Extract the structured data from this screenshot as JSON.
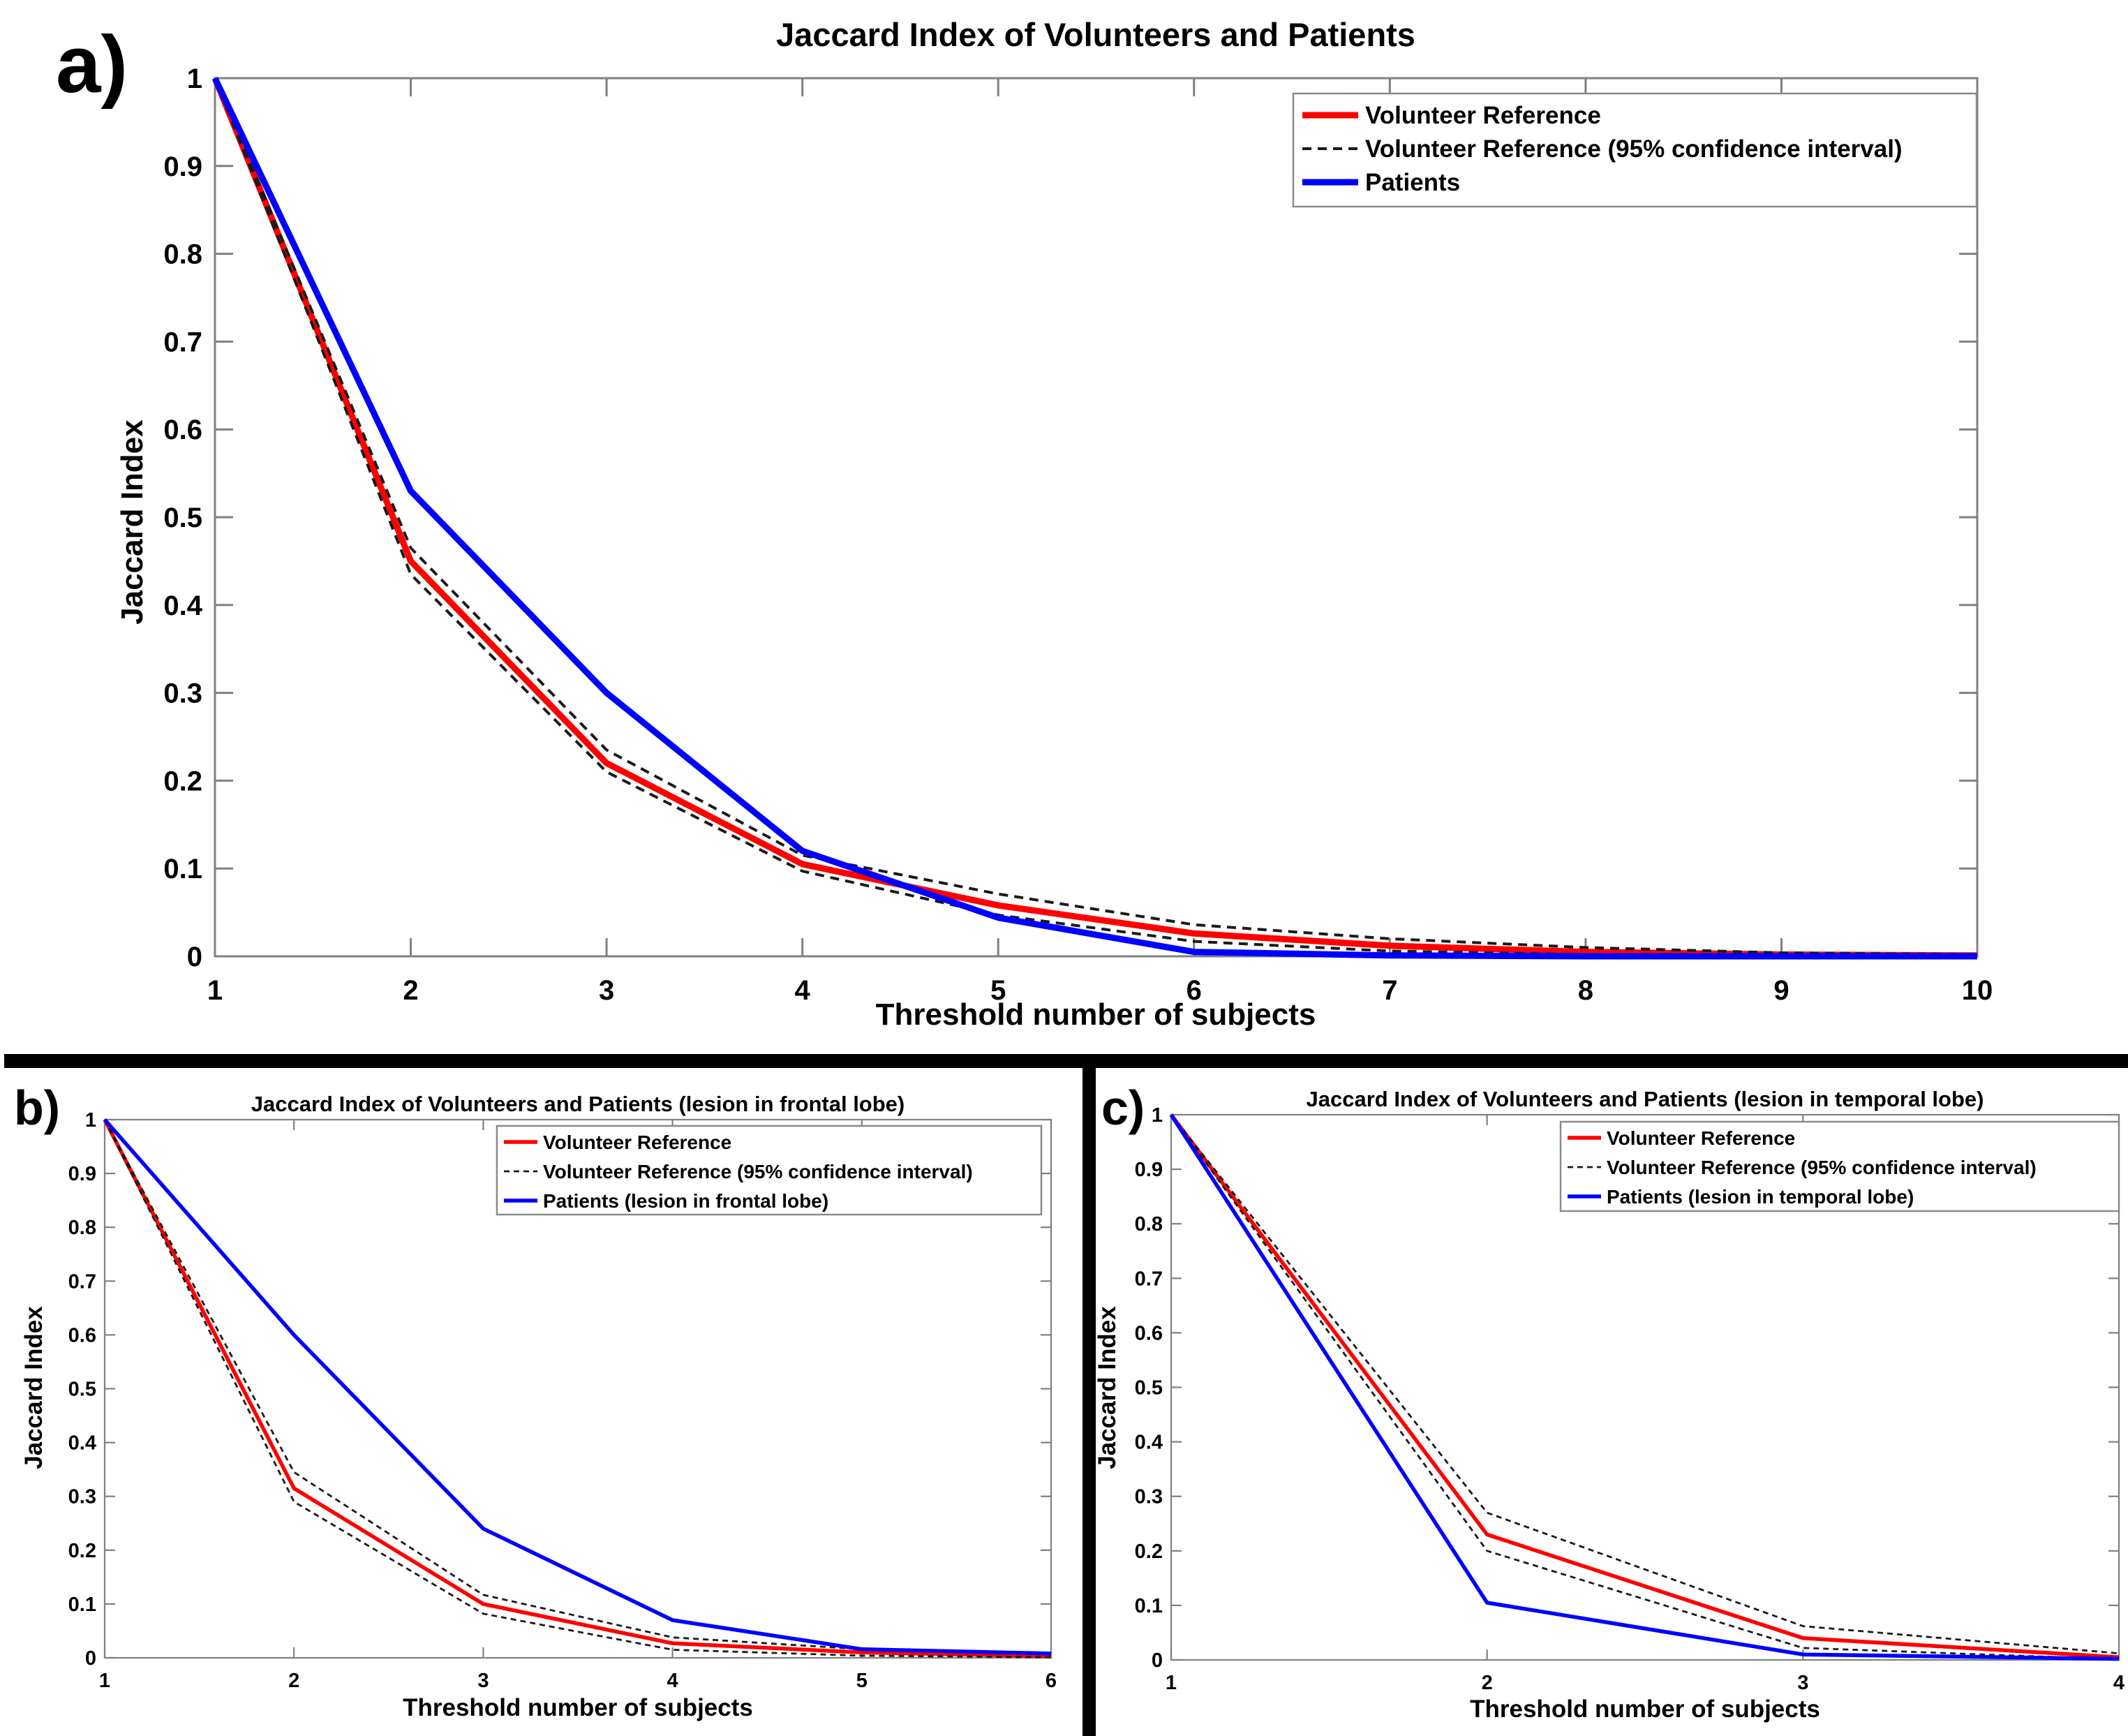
{
  "figure": {
    "panels": [
      {
        "key": "a",
        "label": "a)"
      },
      {
        "key": "b",
        "label": "b)"
      },
      {
        "key": "c",
        "label": "c)"
      }
    ]
  },
  "colors": {
    "volunteer_reference": "#ff0000",
    "confidence_interval": "#1a1a1a",
    "patients": "#0000ff",
    "axis": "#808080",
    "legend_border": "#8a8a8a",
    "divider": "#000000",
    "background": "#ffffff",
    "text": "#000000"
  },
  "chart_data": [
    {
      "panel_key": "a",
      "panel_label": "a)",
      "type": "line",
      "title": "Jaccard Index of Volunteers and Patients",
      "xlabel": "Threshold number of subjects",
      "ylabel": "Jaccard Index",
      "x": [
        1,
        2,
        3,
        4,
        5,
        6,
        7,
        8,
        9,
        10
      ],
      "xlim": [
        1,
        10
      ],
      "ylim": [
        0,
        1
      ],
      "xtick_labels": [
        "1",
        "2",
        "3",
        "4",
        "5",
        "6",
        "7",
        "8",
        "9",
        "10"
      ],
      "yticks": [
        0,
        0.1,
        0.2,
        0.3,
        0.4,
        0.5,
        0.6,
        0.7,
        0.8,
        0.9,
        1
      ],
      "ytick_labels": [
        "0",
        "0.1",
        "0.2",
        "0.3",
        "0.4",
        "0.5",
        "0.6",
        "0.7",
        "0.8",
        "0.9",
        "1"
      ],
      "grid": false,
      "legend_position": "upper-right",
      "series": [
        {
          "name": "Volunteer Reference",
          "color": "#ff0000",
          "style": "solid",
          "values": [
            1,
            0.45,
            0.22,
            0.105,
            0.058,
            0.026,
            0.012,
            0.005,
            0.002,
            0.001
          ]
        },
        {
          "name": "Volunteer Reference (95% confidence interval)",
          "color": "#1a1a1a",
          "style": "dashed",
          "values_upper": [
            1,
            0.465,
            0.235,
            0.115,
            0.071,
            0.036,
            0.02,
            0.01,
            0.004,
            0.002
          ],
          "values_lower": [
            1,
            0.435,
            0.21,
            0.097,
            0.047,
            0.017,
            0.006,
            0.002,
            0.001,
            0
          ]
        },
        {
          "name": "Patients",
          "color": "#0000ff",
          "style": "solid",
          "values": [
            1,
            0.53,
            0.3,
            0.12,
            0.044,
            0.005,
            0.001,
            0,
            0,
            0
          ]
        }
      ]
    },
    {
      "panel_key": "b",
      "panel_label": "b)",
      "type": "line",
      "title": "Jaccard Index of Volunteers and Patients (lesion in frontal lobe)",
      "xlabel": "Threshold number of subjects",
      "ylabel": "Jaccard Index",
      "x": [
        1,
        2,
        3,
        4,
        5,
        6
      ],
      "xlim": [
        1,
        6
      ],
      "ylim": [
        0,
        1
      ],
      "xtick_labels": [
        "1",
        "2",
        "3",
        "4",
        "5",
        "6"
      ],
      "yticks": [
        0,
        0.1,
        0.2,
        0.3,
        0.4,
        0.5,
        0.6,
        0.7,
        0.8,
        0.9,
        1
      ],
      "ytick_labels": [
        "0",
        "0.1",
        "0.2",
        "0.3",
        "0.4",
        "0.5",
        "0.6",
        "0.7",
        "0.8",
        "0.9",
        "1"
      ],
      "grid": false,
      "legend_position": "upper-right",
      "series": [
        {
          "name": "Volunteer Reference",
          "color": "#ff0000",
          "style": "solid",
          "values": [
            1,
            0.315,
            0.1,
            0.027,
            0.01,
            0.003
          ]
        },
        {
          "name": "Volunteer Reference (95% confidence interval)",
          "color": "#1a1a1a",
          "style": "dashed",
          "values_upper": [
            1,
            0.345,
            0.117,
            0.038,
            0.016,
            0.006
          ],
          "values_lower": [
            1,
            0.29,
            0.082,
            0.015,
            0.004,
            0.001
          ]
        },
        {
          "name": "Patients (lesion in frontal lobe)",
          "color": "#0000ff",
          "style": "solid",
          "values": [
            1,
            0.6,
            0.24,
            0.07,
            0.016,
            0.008
          ]
        }
      ]
    },
    {
      "panel_key": "c",
      "panel_label": "c)",
      "type": "line",
      "title": "Jaccard Index of Volunteers and Patients (lesion in temporal lobe)",
      "xlabel": "Threshold number of subjects",
      "ylabel": "Jaccard Index",
      "x": [
        1,
        2,
        3,
        4
      ],
      "xlim": [
        1,
        4
      ],
      "ylim": [
        0,
        1
      ],
      "xtick_labels": [
        "1",
        "2",
        "3",
        "4"
      ],
      "yticks": [
        0,
        0.1,
        0.2,
        0.3,
        0.4,
        0.5,
        0.6,
        0.7,
        0.8,
        0.9,
        1
      ],
      "ytick_labels": [
        "0",
        "0.1",
        "0.2",
        "0.3",
        "0.4",
        "0.5",
        "0.6",
        "0.7",
        "0.8",
        "0.9",
        "1"
      ],
      "grid": false,
      "legend_position": "upper-right",
      "series": [
        {
          "name": "Volunteer Reference",
          "color": "#ff0000",
          "style": "solid",
          "values": [
            1,
            0.23,
            0.04,
            0.005
          ]
        },
        {
          "name": "Volunteer Reference (95% confidence interval)",
          "color": "#1a1a1a",
          "style": "dashed",
          "values_upper": [
            1,
            0.27,
            0.062,
            0.012
          ],
          "values_lower": [
            1,
            0.2,
            0.022,
            0.001
          ]
        },
        {
          "name": "Patients (lesion in temporal lobe)",
          "color": "#0000ff",
          "style": "solid",
          "values": [
            1,
            0.105,
            0.01,
            0.002
          ]
        }
      ]
    }
  ]
}
